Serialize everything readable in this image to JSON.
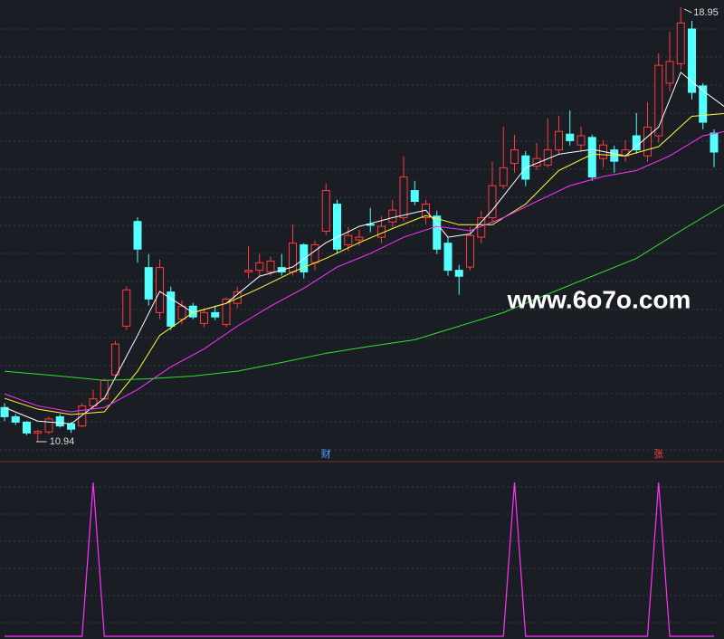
{
  "chart_data": {
    "type": "candlestick",
    "up_color": "#ff3b3b",
    "down_color": "#54ffff",
    "candles": {
      "open": [
        11.57,
        11.4,
        11.3,
        11.1,
        11.12,
        11.4,
        11.27,
        11.23,
        11.6,
        11.73,
        12.17,
        13.07,
        15.0,
        14.15,
        13.32,
        13.7,
        13.2,
        13.44,
        13.12,
        13.32,
        13.1,
        13.49,
        14.07,
        14.1,
        14.07,
        14.15,
        14.07,
        14.57,
        14.24,
        14.82,
        15.32,
        14.57,
        14.66,
        14.95,
        14.71,
        14.99,
        15.07,
        15.57,
        15.07,
        15.1,
        14.6,
        14.1,
        14.16,
        14.71,
        15.07,
        15.66,
        16.07,
        16.21,
        16.02,
        16.04,
        16.32,
        16.61,
        16.41,
        16.55,
        16.16,
        16.32,
        16.21,
        16.58,
        16.21,
        16.58,
        17.55,
        17.91,
        18.55,
        17.5,
        16.63
      ],
      "high": [
        11.65,
        11.45,
        11.32,
        11.16,
        11.4,
        11.45,
        11.3,
        11.65,
        11.9,
        12.1,
        12.8,
        13.8,
        15.08,
        14.4,
        14.3,
        13.8,
        13.55,
        13.5,
        13.4,
        13.45,
        13.6,
        13.8,
        14.55,
        14.4,
        14.35,
        14.4,
        14.95,
        14.6,
        14.65,
        15.7,
        15.4,
        14.9,
        14.85,
        15.25,
        15.1,
        15.4,
        16.2,
        15.75,
        15.4,
        15.2,
        14.7,
        14.2,
        14.9,
        15.2,
        16.1,
        16.75,
        16.6,
        16.3,
        16.45,
        16.9,
        16.95,
        17.05,
        16.75,
        16.6,
        16.5,
        16.4,
        16.5,
        17.0,
        17.2,
        18.1,
        18.5,
        18.95,
        18.7,
        17.55,
        16.7
      ],
      "low": [
        11.32,
        11.25,
        11.06,
        10.94,
        11.08,
        11.2,
        11.1,
        11.2,
        11.55,
        11.7,
        12.1,
        13.0,
        14.24,
        13.45,
        13.2,
        13.0,
        13.1,
        13.2,
        13.05,
        13.18,
        13.05,
        13.4,
        13.95,
        14.0,
        14.0,
        14.0,
        14.0,
        13.95,
        14.1,
        14.75,
        14.4,
        14.45,
        14.55,
        14.8,
        14.6,
        14.9,
        15.0,
        15.3,
        14.95,
        14.4,
        14.0,
        13.65,
        14.1,
        14.6,
        15.0,
        15.6,
        15.9,
        15.65,
        15.95,
        16.0,
        16.25,
        16.4,
        16.3,
        15.75,
        16.0,
        15.9,
        16.1,
        16.25,
        16.1,
        16.45,
        17.4,
        17.8,
        17.25,
        16.7,
        16.0
      ],
      "close": [
        11.4,
        11.3,
        11.1,
        11.13,
        11.36,
        11.23,
        11.17,
        11.6,
        11.73,
        12.07,
        12.74,
        13.74,
        14.49,
        13.57,
        14.15,
        13.07,
        13.44,
        13.24,
        13.32,
        13.24,
        13.57,
        13.7,
        14.1,
        14.24,
        14.27,
        14.07,
        14.6,
        14.07,
        14.57,
        15.57,
        14.49,
        14.74,
        14.71,
        14.93,
        14.91,
        15.21,
        15.82,
        15.37,
        15.32,
        14.49,
        14.1,
        13.99,
        14.74,
        15.07,
        15.66,
        15.99,
        16.32,
        15.78,
        16.16,
        16.32,
        16.66,
        16.49,
        16.58,
        15.82,
        16.41,
        16.11,
        16.32,
        16.32,
        16.74,
        17.88,
        17.95,
        18.66,
        17.38,
        16.83,
        16.28
      ]
    },
    "lines": [
      {
        "color": "#ffffff",
        "x": [
          0,
          3,
          6,
          9,
          12,
          14,
          17,
          20,
          23,
          26,
          29,
          32,
          35,
          38,
          40,
          42,
          44,
          47,
          50,
          53,
          56,
          59,
          61,
          63,
          65
        ],
        "values": [
          11.57,
          11.32,
          11.27,
          11.74,
          12.9,
          13.71,
          13.32,
          13.49,
          13.99,
          14.16,
          14.61,
          14.91,
          15.07,
          15.21,
          14.71,
          14.77,
          15.21,
          15.99,
          16.24,
          16.33,
          16.21,
          16.74,
          17.75,
          17.41,
          17.11
        ]
      },
      {
        "color": "#ffff33",
        "x": [
          0,
          3,
          6,
          9,
          12,
          14,
          17,
          20,
          23,
          26,
          29,
          32,
          35,
          38,
          41,
          44,
          47,
          50,
          53,
          56,
          59,
          62,
          65
        ],
        "values": [
          11.74,
          11.54,
          11.44,
          11.49,
          12.24,
          12.9,
          13.32,
          13.49,
          13.77,
          14.07,
          14.32,
          14.61,
          14.87,
          15.11,
          14.94,
          14.94,
          15.32,
          15.94,
          16.24,
          16.21,
          16.38,
          16.94,
          16.99
        ]
      },
      {
        "color": "#ff33ff",
        "x": [
          0,
          3,
          6,
          9,
          12,
          15,
          18,
          21,
          24,
          27,
          30,
          33,
          36,
          39,
          42,
          45,
          48,
          51,
          54,
          57,
          60,
          63,
          65
        ],
        "values": [
          11.82,
          11.6,
          11.49,
          11.57,
          11.9,
          12.32,
          12.65,
          13.07,
          13.44,
          13.77,
          14.16,
          14.41,
          14.71,
          14.91,
          14.83,
          15.07,
          15.37,
          15.66,
          15.83,
          15.94,
          16.21,
          16.58,
          16.66
        ]
      },
      {
        "color": "#33dd33",
        "x": [
          0,
          5,
          9,
          13,
          17,
          21,
          25,
          29,
          33,
          37,
          41,
          45,
          49,
          53,
          57,
          61,
          65
        ],
        "values": [
          12.24,
          12.15,
          12.07,
          12.1,
          12.15,
          12.24,
          12.4,
          12.57,
          12.7,
          12.82,
          13.07,
          13.32,
          13.66,
          13.99,
          14.32,
          14.83,
          15.32
        ]
      }
    ],
    "markers": [
      {
        "index": 29,
        "label": "财",
        "color": "#4fa3ff"
      },
      {
        "index": 59,
        "label": "张",
        "color": "#ff4444"
      }
    ],
    "watermark": "www.6o7o.com",
    "signal": {
      "color": "#ff33ff",
      "values": [
        0,
        0,
        0,
        0,
        0,
        0,
        0,
        0,
        1,
        0,
        0,
        0,
        0,
        0,
        0,
        0,
        0,
        0,
        0,
        0,
        0,
        0,
        0,
        0,
        0,
        0,
        0,
        0,
        0,
        0,
        0,
        0,
        0,
        0,
        0,
        0,
        0,
        0,
        0,
        0,
        0,
        0,
        0,
        0,
        0,
        0,
        1,
        0,
        0,
        0,
        0,
        0,
        0,
        0,
        0,
        0,
        0,
        0,
        0,
        1,
        0,
        0,
        0,
        0,
        0
      ]
    }
  }
}
